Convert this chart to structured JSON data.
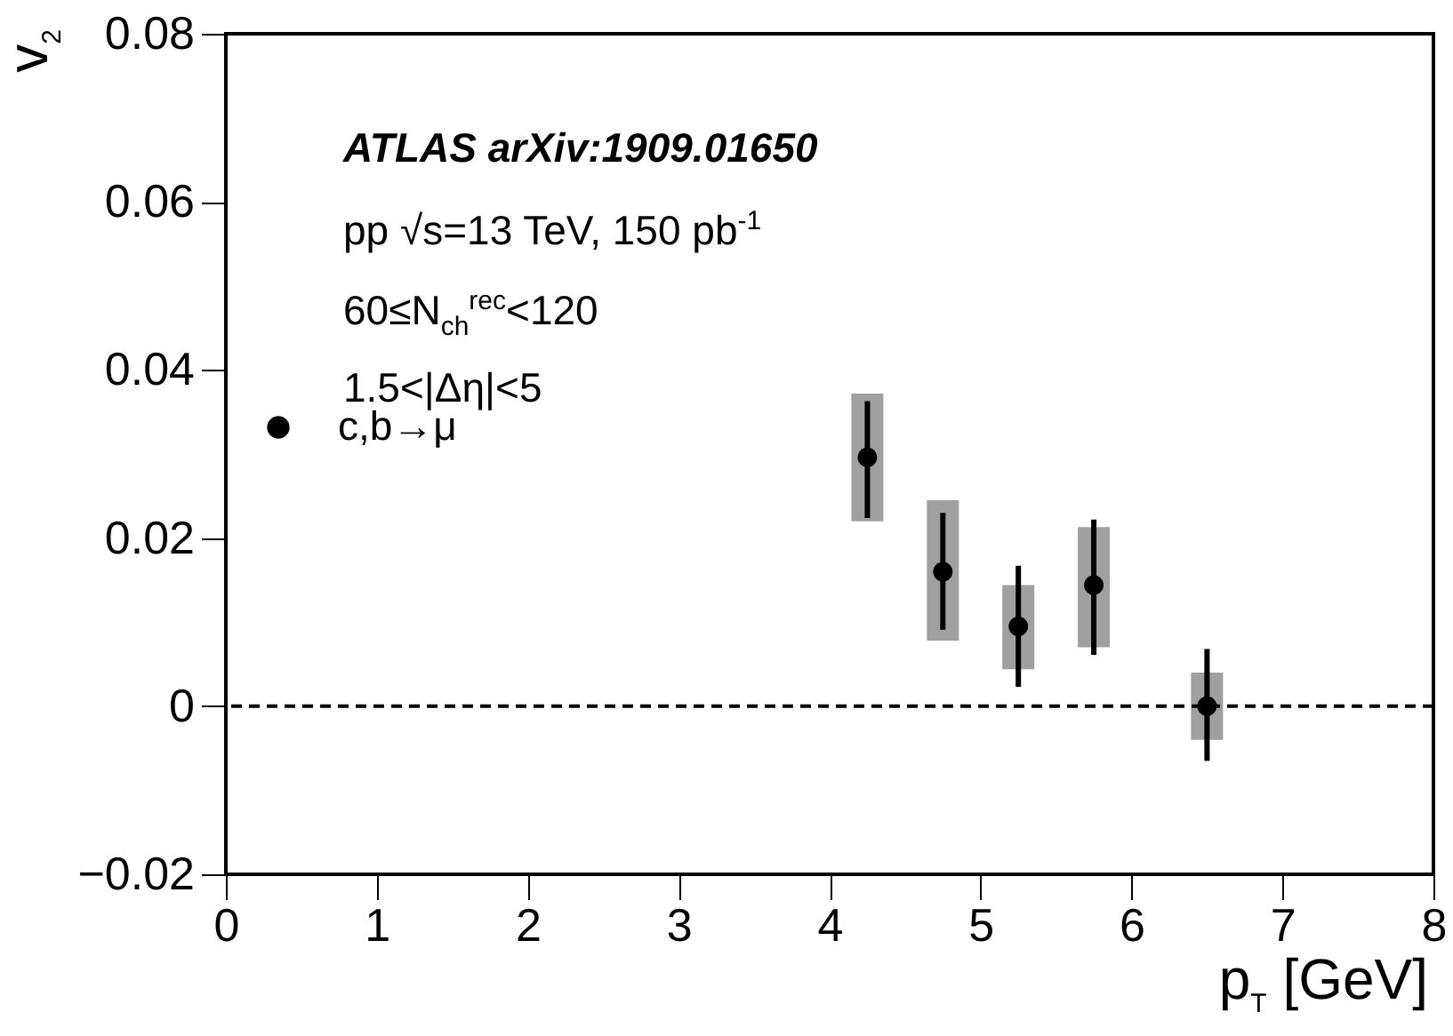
{
  "chart_data": {
    "type": "scatter",
    "xlabel": "p$_{T}$ [GeV]",
    "ylabel": "v$_{2}$",
    "x": [
      4.25,
      4.75,
      5.25,
      5.75,
      6.5
    ],
    "series": [
      {
        "type": "bar",
        "color": "#a0a0a0",
        "base": [
          0.022,
          0.0078,
          0.0044,
          0.007,
          -0.004
        ],
        "values": [
          0.0152,
          0.0167,
          0.01,
          0.0143,
          0.008
        ]
      },
      {
        "name": "c,b→μ",
        "color": "#000000",
        "marker": "circle",
        "values": [
          0.0296,
          0.016,
          0.0095,
          0.0144,
          0
        ],
        "errors": [
          [
            0.0224,
            0.0363
          ],
          [
            0.0091,
            0.023
          ],
          [
            0.0023,
            0.0167
          ],
          [
            0.0061,
            0.0222
          ],
          [
            -0.0065,
            0.0068
          ]
        ]
      }
    ],
    "xlim": [
      0,
      8
    ],
    "xticks": [
      0,
      1,
      2,
      3,
      4,
      5,
      6,
      7,
      8
    ],
    "ylim": [
      -0.02,
      0.08
    ],
    "yticks": [
      {
        "value": -0.02,
        "label": "−0.02"
      },
      0,
      0.02,
      0.04,
      0.06,
      0.08
    ],
    "ref_lines": [
      {
        "axis": "y",
        "value": 0,
        "line_style": "dashed",
        "color": "#000000"
      }
    ],
    "legend": "top left",
    "annotations": [
      "ATLAS   arXiv:1909.01650",
      "pp  √s=13 TeV, 150 pb$^{-1}$",
      "60≤N$_{ch}$$^{rec}$<120",
      "1.5<|Δη|<5"
    ]
  }
}
